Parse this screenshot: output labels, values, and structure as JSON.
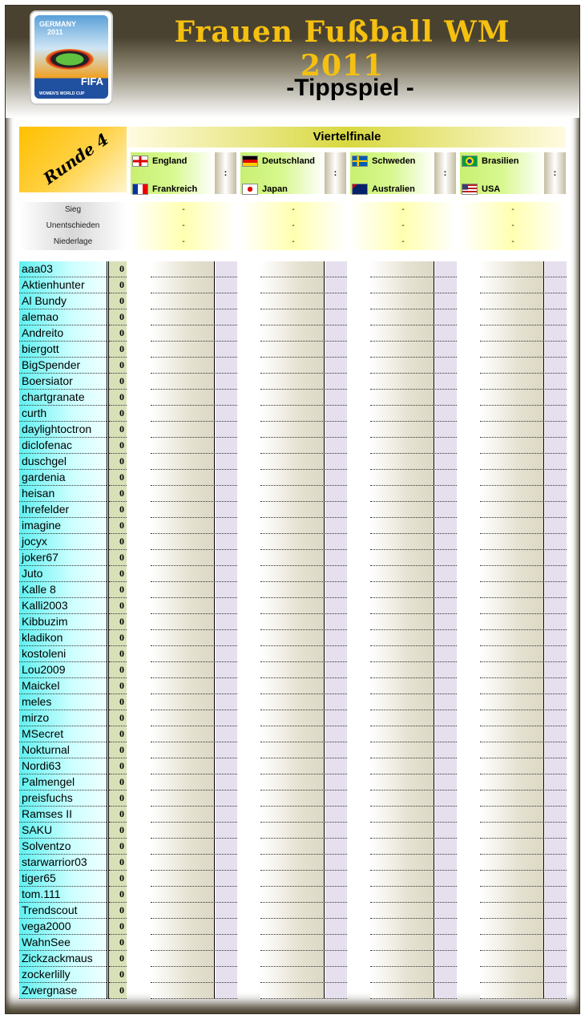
{
  "header": {
    "title": "Frauen Fußball WM 2011",
    "subtitle": "-Tippspiel -",
    "logo_text": [
      "GERMANY 2011",
      "FIFA",
      "WOMEN'S WORLD CUP"
    ]
  },
  "round": {
    "label": "Runde 4",
    "stage": "Viertelfinale"
  },
  "matches": [
    {
      "home": "England",
      "home_flag": "england",
      "away": "Frankreich",
      "away_flag": "france",
      "sep": ":",
      "sieg": "-",
      "unentschieden": "-",
      "niederlage": "-"
    },
    {
      "home": "Deutschland",
      "home_flag": "germany",
      "away": "Japan",
      "away_flag": "japan",
      "sep": ":",
      "sieg": "-",
      "unentschieden": "-",
      "niederlage": "-"
    },
    {
      "home": "Schweden",
      "home_flag": "sweden",
      "away": "Australien",
      "away_flag": "australia",
      "sep": ":",
      "sieg": "-",
      "unentschieden": "-",
      "niederlage": "-"
    },
    {
      "home": "Brasilien",
      "home_flag": "brazil",
      "away": "USA",
      "away_flag": "usa",
      "sep": ":",
      "sieg": "-",
      "unentschieden": "-",
      "niederlage": "-"
    }
  ],
  "stat_labels": {
    "sieg": "Sieg",
    "unentschieden": "Unentschieden",
    "niederlage": "Niederlage"
  },
  "players": [
    {
      "name": "aaa03",
      "score": "0"
    },
    {
      "name": "Aktienhunter",
      "score": "0"
    },
    {
      "name": "Al Bundy",
      "score": "0"
    },
    {
      "name": "alemao",
      "score": "0"
    },
    {
      "name": "Andreito",
      "score": "0"
    },
    {
      "name": "biergott",
      "score": "0"
    },
    {
      "name": "BigSpender",
      "score": "0"
    },
    {
      "name": "Boersiator",
      "score": "0"
    },
    {
      "name": "chartgranate",
      "score": "0"
    },
    {
      "name": "curth",
      "score": "0"
    },
    {
      "name": "daylightoctron",
      "score": "0"
    },
    {
      "name": "diclofenac",
      "score": "0"
    },
    {
      "name": "duschgel",
      "score": "0"
    },
    {
      "name": "gardenia",
      "score": "0"
    },
    {
      "name": "heisan",
      "score": "0"
    },
    {
      "name": "Ihrefelder",
      "score": "0"
    },
    {
      "name": "imagine",
      "score": "0"
    },
    {
      "name": "jocyx",
      "score": "0"
    },
    {
      "name": "joker67",
      "score": "0"
    },
    {
      "name": "Juto",
      "score": "0"
    },
    {
      "name": "Kalle 8",
      "score": "0"
    },
    {
      "name": "Kalli2003",
      "score": "0"
    },
    {
      "name": "Kibbuzim",
      "score": "0"
    },
    {
      "name": "kladikon",
      "score": "0"
    },
    {
      "name": "kostoleni",
      "score": "0"
    },
    {
      "name": "Lou2009",
      "score": "0"
    },
    {
      "name": "Maickel",
      "score": "0"
    },
    {
      "name": "meles",
      "score": "0"
    },
    {
      "name": "mirzo",
      "score": "0"
    },
    {
      "name": "MSecret",
      "score": "0"
    },
    {
      "name": "Nokturnal",
      "score": "0"
    },
    {
      "name": "Nordi63",
      "score": "0"
    },
    {
      "name": "Palmengel",
      "score": "0"
    },
    {
      "name": "preisfuchs",
      "score": "0"
    },
    {
      "name": "Ramses II",
      "score": "0"
    },
    {
      "name": "SAKU",
      "score": "0"
    },
    {
      "name": "Solventzo",
      "score": "0"
    },
    {
      "name": "starwarrior03",
      "score": "0"
    },
    {
      "name": "tiger65",
      "score": "0"
    },
    {
      "name": "tom.111",
      "score": "0"
    },
    {
      "name": "Trendscout",
      "score": "0"
    },
    {
      "name": "vega2000",
      "score": "0"
    },
    {
      "name": "WahnSee",
      "score": "0"
    },
    {
      "name": "Zickzackmaus",
      "score": "0"
    },
    {
      "name": "zockerlilly",
      "score": "0"
    },
    {
      "name": "Zwergnase",
      "score": "0"
    }
  ],
  "colors": {
    "header_bg": "#4a4230",
    "title": "#f5c010",
    "name_cell": "#60f0f0",
    "score_cell": "#d8e0b8",
    "tip_alt": "#e6e0ee"
  }
}
